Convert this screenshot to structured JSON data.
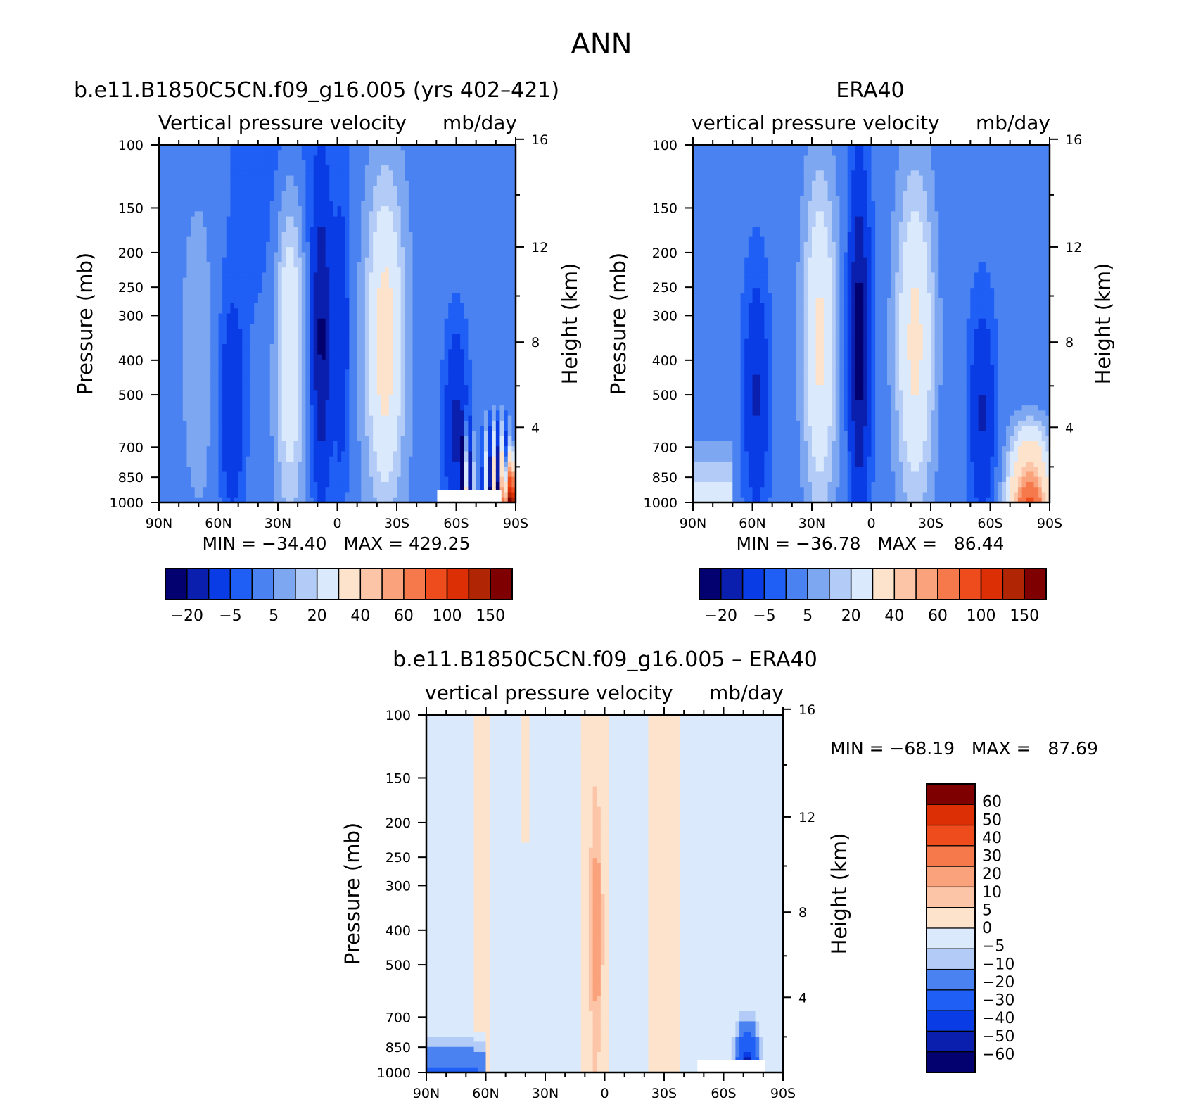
{
  "page_title": "ANN",
  "chart_data": [
    {
      "type": "heatmap",
      "title": "b.e11.B1850C5CN.f09_g16.005 (yrs 402–421)",
      "left_label": "Vertical pressure velocity",
      "right_label": "mb/day",
      "ylabel": "Pressure (mb)",
      "y2label": "Height (km)",
      "x_ticks": [
        "90N",
        "60N",
        "30N",
        "0",
        "30S",
        "60S",
        "90S"
      ],
      "y_ticks": [
        "100",
        "150",
        "200",
        "250",
        "300",
        "400",
        "500",
        "700",
        "850",
        "1000"
      ],
      "y2_ticks": [
        "16",
        "12",
        "8",
        "4"
      ],
      "min_max": "MIN = −34.40   MAX = 429.25",
      "colorbar": {
        "orientation": "horizontal",
        "colors": [
          "#03006f",
          "#0a1fad",
          "#0a3ce6",
          "#1f5ff5",
          "#4a82f2",
          "#7ea7f2",
          "#b2cbf7",
          "#dae9fb",
          "#fde3cc",
          "#fcc5a8",
          "#f9a27b",
          "#f5794a",
          "#ef4c1d",
          "#dc2f06",
          "#b02503",
          "#7f0000"
        ],
        "labels": [
          "−20",
          "−5",
          "5",
          "20",
          "40",
          "60",
          "100",
          "150"
        ],
        "levels": [
          -30,
          -20,
          -10,
          -5,
          0,
          5,
          10,
          20,
          30,
          40,
          50,
          60,
          80,
          100,
          125,
          150
        ]
      }
    },
    {
      "type": "heatmap",
      "title": "ERA40",
      "left_label": "vertical pressure velocity",
      "right_label": "mb/day",
      "ylabel": "Pressure (mb)",
      "y2label": "Height (km)",
      "x_ticks": [
        "90N",
        "60N",
        "30N",
        "0",
        "30S",
        "60S",
        "90S"
      ],
      "y_ticks": [
        "100",
        "150",
        "200",
        "250",
        "300",
        "400",
        "500",
        "700",
        "850",
        "1000"
      ],
      "y2_ticks": [
        "16",
        "12",
        "8",
        "4"
      ],
      "min_max": "MIN = −36.78   MAX =   86.44",
      "colorbar": {
        "orientation": "horizontal",
        "colors": [
          "#03006f",
          "#0a1fad",
          "#0a3ce6",
          "#1f5ff5",
          "#4a82f2",
          "#7ea7f2",
          "#b2cbf7",
          "#dae9fb",
          "#fde3cc",
          "#fcc5a8",
          "#f9a27b",
          "#f5794a",
          "#ef4c1d",
          "#dc2f06",
          "#b02503",
          "#7f0000"
        ],
        "labels": [
          "−20",
          "−5",
          "5",
          "20",
          "40",
          "60",
          "100",
          "150"
        ],
        "levels": [
          -30,
          -20,
          -10,
          -5,
          0,
          5,
          10,
          20,
          30,
          40,
          50,
          60,
          80,
          100,
          125,
          150
        ]
      }
    },
    {
      "type": "heatmap",
      "title": "b.e11.B1850C5CN.f09_g16.005 – ERA40",
      "left_label": "vertical pressure velocity",
      "right_label": "mb/day",
      "ylabel": "Pressure (mb)",
      "y2label": "Height (km)",
      "x_ticks": [
        "90N",
        "60N",
        "30N",
        "0",
        "30S",
        "60S",
        "90S"
      ],
      "y_ticks": [
        "100",
        "150",
        "200",
        "250",
        "300",
        "400",
        "500",
        "700",
        "850",
        "1000"
      ],
      "y2_ticks": [
        "16",
        "12",
        "8",
        "4"
      ],
      "min_max": "MIN = −68.19   MAX =   87.69",
      "colorbar": {
        "orientation": "vertical",
        "colors": [
          "#03006f",
          "#0a1fad",
          "#0a3ce6",
          "#1f5ff5",
          "#4a82f2",
          "#b2cbf7",
          "#dae9fb",
          "#fde3cc",
          "#fcc5a8",
          "#f9a27b",
          "#f5794a",
          "#ef4c1d",
          "#dc2f06",
          "#7f0000"
        ],
        "labels": [
          "−60",
          "−50",
          "−40",
          "−30",
          "−20",
          "−10",
          "−5",
          "0",
          "5",
          "10",
          "20",
          "30",
          "40",
          "50",
          "60"
        ],
        "levels": [
          -60,
          -50,
          -40,
          -30,
          -20,
          -10,
          -5,
          0,
          5,
          10,
          20,
          30,
          40,
          50,
          60
        ]
      }
    }
  ]
}
